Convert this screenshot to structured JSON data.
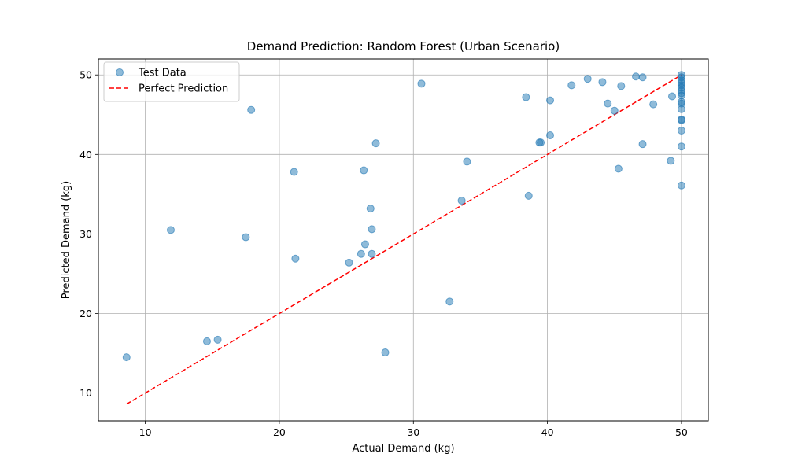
{
  "chart_data": {
    "type": "scatter",
    "title": "Demand Prediction: Random Forest (Urban Scenario)",
    "xlabel": "Actual Demand (kg)",
    "ylabel": "Predicted Demand (kg)",
    "xlim": [
      6.5,
      52.0
    ],
    "ylim": [
      6.5,
      52.0
    ],
    "xticks": [
      10,
      20,
      30,
      40,
      50
    ],
    "yticks": [
      10,
      20,
      30,
      40,
      50
    ],
    "grid": true,
    "legend_position": "upper-left",
    "series": [
      {
        "name": "Test Data",
        "kind": "scatter",
        "color": "#1f77b4",
        "points": [
          [
            8.6,
            14.5
          ],
          [
            11.9,
            30.5
          ],
          [
            14.6,
            16.5
          ],
          [
            15.4,
            16.7
          ],
          [
            17.5,
            29.6
          ],
          [
            17.9,
            45.6
          ],
          [
            21.1,
            37.8
          ],
          [
            21.2,
            26.9
          ],
          [
            25.2,
            26.4
          ],
          [
            26.1,
            27.5
          ],
          [
            26.4,
            28.7
          ],
          [
            26.3,
            38.0
          ],
          [
            26.8,
            33.2
          ],
          [
            26.9,
            30.6
          ],
          [
            26.9,
            27.5
          ],
          [
            27.2,
            41.4
          ],
          [
            27.9,
            15.1
          ],
          [
            30.6,
            48.9
          ],
          [
            32.7,
            21.5
          ],
          [
            33.6,
            34.2
          ],
          [
            34.0,
            39.1
          ],
          [
            38.4,
            47.2
          ],
          [
            38.6,
            34.8
          ],
          [
            39.4,
            41.5
          ],
          [
            39.5,
            41.5
          ],
          [
            40.2,
            46.8
          ],
          [
            40.2,
            42.4
          ],
          [
            41.8,
            48.7
          ],
          [
            43.0,
            49.5
          ],
          [
            44.1,
            49.1
          ],
          [
            44.5,
            46.4
          ],
          [
            45.0,
            45.5
          ],
          [
            45.3,
            38.2
          ],
          [
            45.5,
            48.6
          ],
          [
            46.6,
            49.8
          ],
          [
            47.1,
            49.7
          ],
          [
            47.1,
            41.3
          ],
          [
            47.9,
            46.3
          ],
          [
            49.2,
            39.2
          ],
          [
            49.3,
            47.3
          ],
          [
            50.0,
            50.0
          ],
          [
            50.0,
            49.7
          ],
          [
            50.0,
            49.3
          ],
          [
            50.0,
            49.0
          ],
          [
            50.0,
            48.7
          ],
          [
            50.0,
            48.4
          ],
          [
            50.0,
            48.0
          ],
          [
            50.0,
            47.7
          ],
          [
            50.0,
            47.4
          ],
          [
            50.0,
            46.6
          ],
          [
            50.0,
            46.4
          ],
          [
            50.0,
            45.7
          ],
          [
            50.0,
            44.4
          ],
          [
            50.0,
            44.3
          ],
          [
            50.0,
            43.0
          ],
          [
            50.0,
            41.0
          ],
          [
            50.0,
            36.1
          ]
        ]
      },
      {
        "name": "Perfect Prediction",
        "kind": "line",
        "color": "#ff0000",
        "dash": "dashed",
        "points": [
          [
            8.6,
            8.6
          ],
          [
            50.0,
            50.0
          ]
        ]
      }
    ]
  }
}
